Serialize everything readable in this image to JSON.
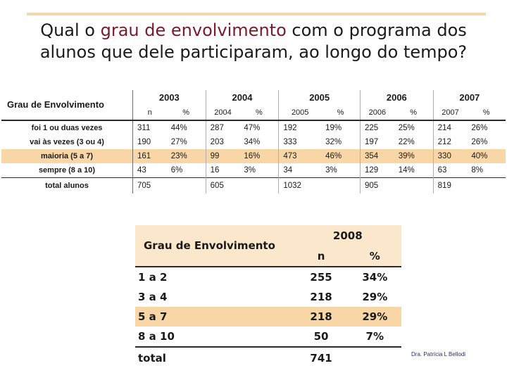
{
  "slide": {
    "title_line1_a": "Qual o ",
    "title_line1_highlight": "grau de envolvimento",
    "title_line1_b": " com o programa dos",
    "title_line2": "alunos que dele participaram, ao longo do tempo?",
    "signature": "Dra. Patrícia L Bellodi"
  },
  "table1": {
    "header_label": "Grau de Envolvimento",
    "years": [
      "2003",
      "2004",
      "2005",
      "2006",
      "2007"
    ],
    "subheaders": [
      [
        "n",
        "%"
      ],
      [
        "2004",
        "%"
      ],
      [
        "2005",
        "%"
      ],
      [
        "2006",
        "%"
      ],
      [
        "2007",
        "%"
      ]
    ],
    "rows": [
      {
        "label": "foi 1 ou duas vezes",
        "values": [
          "311",
          "44%",
          "287",
          "47%",
          "192",
          "19%",
          "225",
          "25%",
          "214",
          "26%"
        ]
      },
      {
        "label": "vai às vezes (3 ou 4)",
        "values": [
          "190",
          "27%",
          "203",
          "34%",
          "333",
          "32%",
          "197",
          "22%",
          "212",
          "26%"
        ]
      },
      {
        "label": "maioria (5 a 7)",
        "values": [
          "161",
          "23%",
          "99",
          "16%",
          "473",
          "46%",
          "354",
          "39%",
          "330",
          "40%"
        ]
      },
      {
        "label": "sempre (8 a 10)",
        "values": [
          "43",
          "6%",
          "16",
          "3%",
          "34",
          "3%",
          "129",
          "14%",
          "63",
          "8%"
        ]
      }
    ],
    "total": {
      "label": "total alunos",
      "values": [
        "705",
        "",
        "605",
        "",
        "1032",
        "",
        "905",
        "",
        "819",
        ""
      ]
    },
    "highlight_color": "#f9d6a6"
  },
  "table2": {
    "header_label": "Grau de Envolvimento",
    "year": "2008",
    "subheaders": [
      "n",
      "%"
    ],
    "rows": [
      {
        "label": "1 a 2",
        "n": "255",
        "pct": "34%"
      },
      {
        "label": "3 a 4",
        "n": "218",
        "pct": "29%"
      },
      {
        "label": "5 a 7",
        "n": "218",
        "pct": "29%"
      },
      {
        "label": "8 a 10",
        "n": "50",
        "pct": "7%"
      }
    ],
    "total": {
      "label": "total",
      "n": "741"
    }
  }
}
